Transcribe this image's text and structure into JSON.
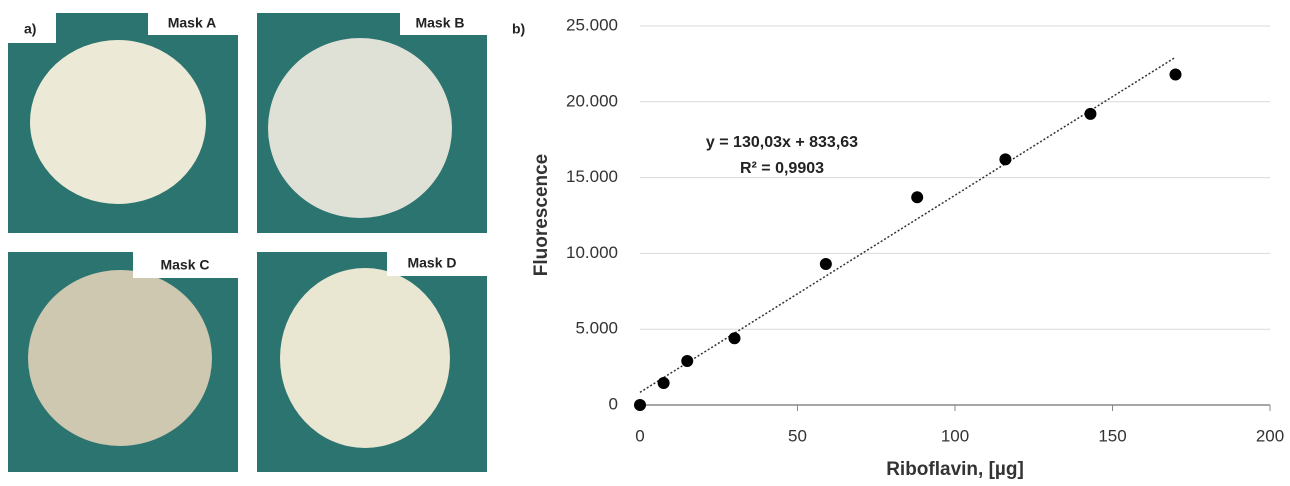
{
  "panel_a": {
    "label": "a)",
    "masks": [
      "Mask A",
      "Mask B",
      "Mask C",
      "Mask D"
    ]
  },
  "panel_b_label": "b)",
  "chart_data": {
    "type": "scatter",
    "x_label": "Riboflavin, [µg]",
    "y_label": "Fluorescence",
    "x": [
      0,
      7.5,
      15,
      30,
      59,
      88,
      116,
      143,
      170
    ],
    "series": [
      {
        "name": "Fluorescence",
        "color": "#000000",
        "values": [
          0,
          1450,
          2900,
          4400,
          9300,
          13700,
          16200,
          19200,
          21800
        ]
      }
    ],
    "trendline": {
      "equation": "y = 130,03x + 833,63",
      "r2": "R² = 0,9903",
      "slope": 130.03,
      "intercept": 833.63
    },
    "xlim": [
      0,
      200
    ],
    "xticks": [
      0,
      50,
      100,
      150,
      200
    ],
    "ylim": [
      0,
      25000
    ],
    "yticks": [
      0,
      {
        "value": 5000,
        "label": "5.000"
      },
      {
        "value": 10000,
        "label": "10.000"
      },
      {
        "value": 15000,
        "label": "15.000"
      },
      {
        "value": 20000,
        "label": "20.000"
      },
      {
        "value": 25000,
        "label": "25.000"
      }
    ],
    "grid": true
  }
}
